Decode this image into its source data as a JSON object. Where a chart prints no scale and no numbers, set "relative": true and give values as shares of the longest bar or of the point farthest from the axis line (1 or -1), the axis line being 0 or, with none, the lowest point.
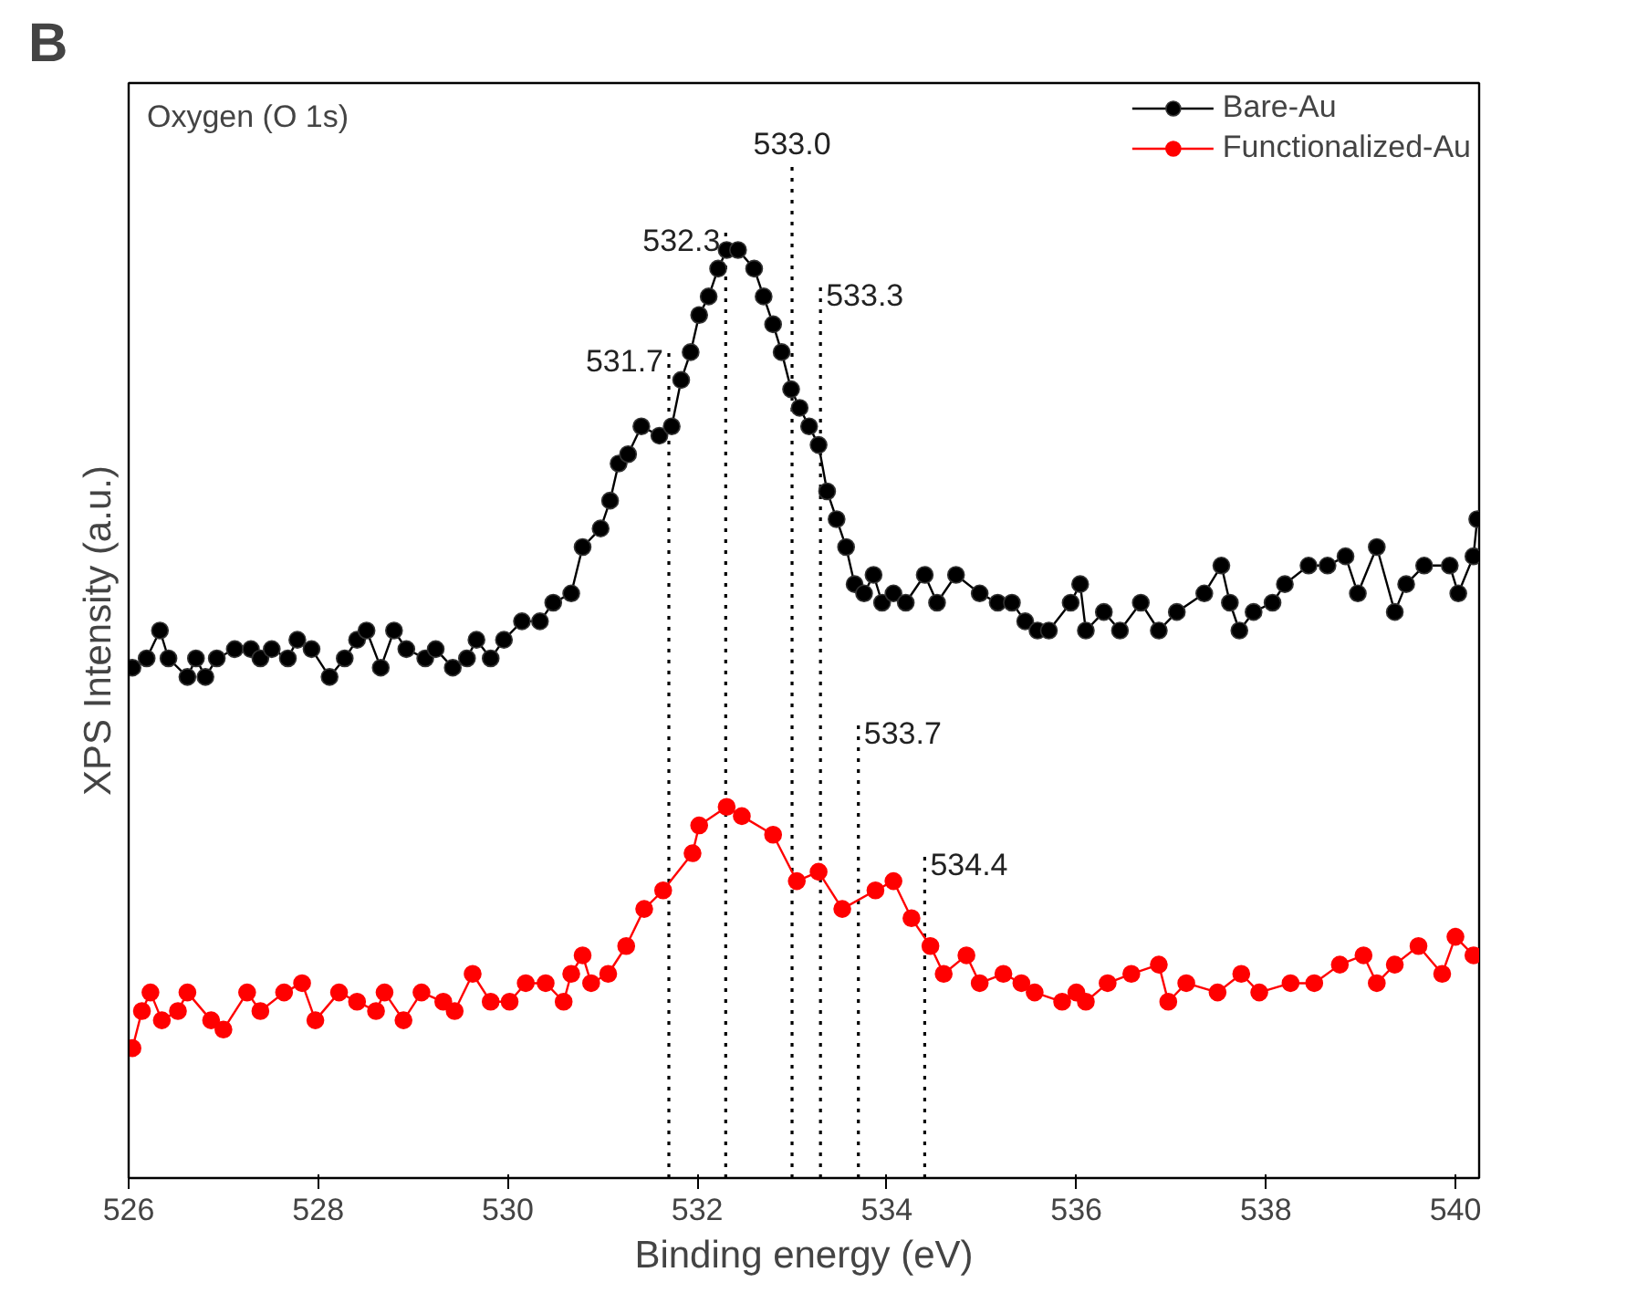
{
  "chart_data": {
    "type": "line",
    "title": "B",
    "xlabel": "Binding energy (eV)",
    "ylabel": "XPS Intensity (a.u.)",
    "relative": true,
    "xlim": [
      526,
      540.25
    ],
    "xticks": [
      526,
      528,
      530,
      532,
      534,
      536,
      538,
      540
    ],
    "tick_labels": "x",
    "marker": "circle",
    "line_style": "solid",
    "grid": false,
    "legend": "top right",
    "series": [
      {
        "name": "Bare-Au",
        "color": "#000000",
        "x": [
          526.04,
          526.19,
          526.33,
          526.42,
          526.62,
          526.71,
          526.81,
          526.93,
          527.12,
          527.29,
          527.39,
          527.51,
          527.68,
          527.78,
          527.93,
          528.12,
          528.28,
          528.41,
          528.51,
          528.66,
          528.8,
          528.93,
          529.13,
          529.24,
          529.42,
          529.57,
          529.67,
          529.82,
          529.96,
          530.15,
          530.34,
          530.48,
          530.67,
          530.79,
          530.98,
          531.08,
          531.17,
          531.27,
          531.41,
          531.6,
          531.73,
          531.83,
          531.93,
          532.02,
          532.12,
          532.22,
          532.31,
          532.43,
          532.6,
          532.7,
          532.8,
          532.89,
          532.99,
          533.08,
          533.18,
          533.28,
          533.37,
          533.47,
          533.57,
          533.66,
          533.76,
          533.86,
          533.95,
          534.07,
          534.2,
          534.4,
          534.53,
          534.73,
          534.98,
          535.17,
          535.32,
          535.46,
          535.59,
          535.71,
          535.94,
          536.04,
          536.1,
          536.29,
          536.46,
          536.68,
          536.87,
          537.06,
          537.35,
          537.53,
          537.62,
          537.72,
          537.87,
          538.07,
          538.2,
          538.45,
          538.65,
          538.84,
          538.97,
          539.17,
          539.36,
          539.48,
          539.67,
          539.94,
          540.03,
          540.19,
          540.23
        ],
        "values": [
          0.55,
          0.56,
          0.59,
          0.56,
          0.54,
          0.56,
          0.54,
          0.56,
          0.57,
          0.57,
          0.56,
          0.57,
          0.56,
          0.58,
          0.57,
          0.54,
          0.56,
          0.58,
          0.59,
          0.55,
          0.59,
          0.57,
          0.56,
          0.57,
          0.55,
          0.56,
          0.58,
          0.56,
          0.58,
          0.6,
          0.6,
          0.62,
          0.63,
          0.68,
          0.7,
          0.73,
          0.77,
          0.78,
          0.81,
          0.8,
          0.81,
          0.86,
          0.89,
          0.93,
          0.95,
          0.98,
          1.0,
          1.0,
          0.98,
          0.95,
          0.92,
          0.89,
          0.85,
          0.83,
          0.81,
          0.79,
          0.74,
          0.71,
          0.68,
          0.64,
          0.63,
          0.65,
          0.62,
          0.63,
          0.62,
          0.65,
          0.62,
          0.65,
          0.63,
          0.62,
          0.62,
          0.6,
          0.59,
          0.59,
          0.62,
          0.64,
          0.59,
          0.61,
          0.59,
          0.62,
          0.59,
          0.61,
          0.63,
          0.66,
          0.62,
          0.59,
          0.61,
          0.62,
          0.64,
          0.66,
          0.66,
          0.67,
          0.63,
          0.68,
          0.61,
          0.64,
          0.66,
          0.66,
          0.63,
          0.67,
          0.71
        ]
      },
      {
        "name": "Functionalized-Au",
        "color": "#ff0000",
        "x": [
          526.04,
          526.14,
          526.23,
          526.35,
          526.52,
          526.62,
          526.87,
          527.0,
          527.25,
          527.39,
          527.64,
          527.83,
          527.97,
          528.22,
          528.41,
          528.61,
          528.7,
          528.9,
          529.09,
          529.32,
          529.44,
          529.63,
          529.82,
          530.02,
          530.19,
          530.4,
          530.59,
          530.67,
          530.79,
          530.88,
          531.06,
          531.25,
          531.44,
          531.64,
          531.95,
          532.02,
          532.31,
          532.47,
          532.8,
          533.05,
          533.28,
          533.53,
          533.88,
          534.07,
          534.26,
          534.46,
          534.6,
          534.84,
          534.98,
          535.23,
          535.42,
          535.56,
          535.85,
          536.0,
          536.1,
          536.33,
          536.58,
          536.87,
          536.97,
          537.16,
          537.49,
          537.74,
          537.93,
          538.26,
          538.51,
          538.78,
          539.03,
          539.17,
          539.36,
          539.61,
          539.86,
          540.0,
          540.19
        ],
        "values": [
          0.14,
          0.18,
          0.2,
          0.17,
          0.18,
          0.2,
          0.17,
          0.16,
          0.2,
          0.18,
          0.2,
          0.21,
          0.17,
          0.2,
          0.19,
          0.18,
          0.2,
          0.17,
          0.2,
          0.19,
          0.18,
          0.22,
          0.19,
          0.19,
          0.21,
          0.21,
          0.19,
          0.22,
          0.24,
          0.21,
          0.22,
          0.25,
          0.29,
          0.31,
          0.35,
          0.38,
          0.4,
          0.39,
          0.37,
          0.32,
          0.33,
          0.29,
          0.31,
          0.32,
          0.28,
          0.25,
          0.22,
          0.24,
          0.21,
          0.22,
          0.21,
          0.2,
          0.19,
          0.2,
          0.19,
          0.21,
          0.22,
          0.23,
          0.19,
          0.21,
          0.2,
          0.22,
          0.2,
          0.21,
          0.21,
          0.23,
          0.24,
          0.21,
          0.23,
          0.25,
          0.22,
          0.26,
          0.24
        ]
      }
    ],
    "ref_lines": [
      {
        "axis": "x",
        "value": 531.7,
        "label": "531.7",
        "line_style": "dotted",
        "color": "#000000"
      },
      {
        "axis": "x",
        "value": 532.3,
        "label": "532.3",
        "line_style": "dotted",
        "color": "#000000"
      },
      {
        "axis": "x",
        "value": 533.0,
        "label": "533.0",
        "line_style": "dotted",
        "color": "#000000"
      },
      {
        "axis": "x",
        "value": 533.3,
        "label": "533.3",
        "line_style": "dotted",
        "color": "#000000"
      },
      {
        "axis": "x",
        "value": 533.7,
        "label": "533.7",
        "line_style": "dotted",
        "color": "#000000"
      },
      {
        "axis": "x",
        "value": 534.4,
        "label": "534.4",
        "line_style": "dotted",
        "color": "#000000"
      }
    ],
    "annotations": [
      "Oxygen (O 1s)"
    ]
  }
}
